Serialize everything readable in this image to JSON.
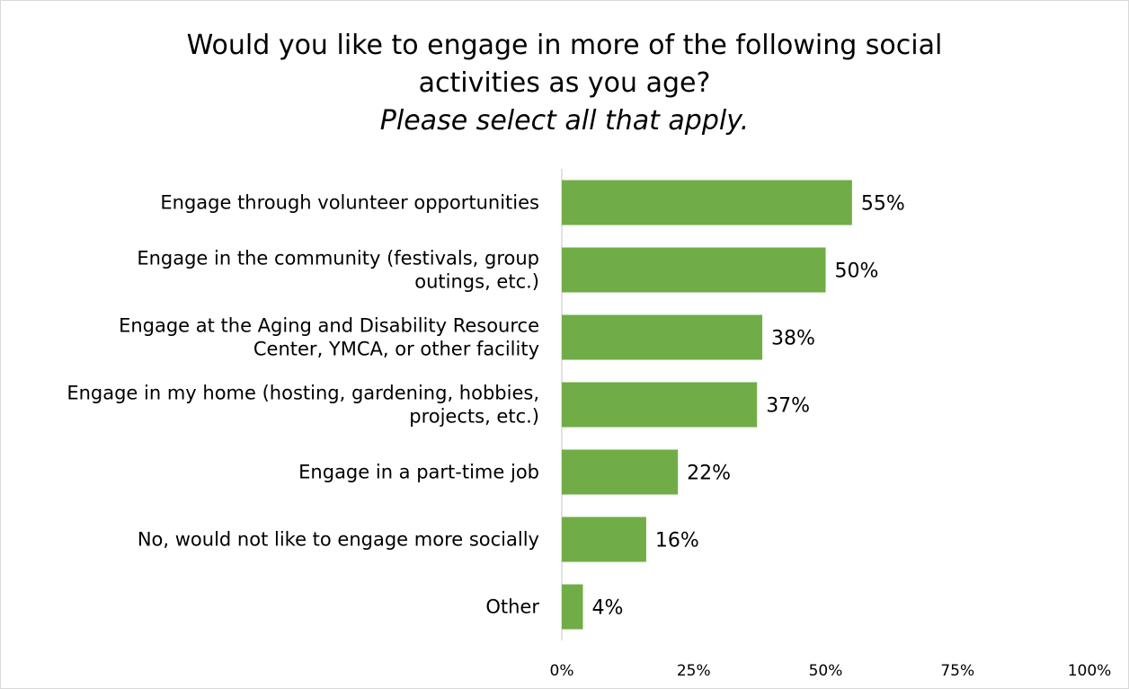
{
  "chart_data": {
    "type": "bar",
    "orientation": "horizontal",
    "title": "Would you like to engage in more of the following social activities as you age?",
    "subtitle": "Please select all that apply.",
    "categories": [
      [
        "Engage through volunteer opportunities"
      ],
      [
        "Engage in the community (festivals, group",
        "outings, etc.)"
      ],
      [
        "Engage at the Aging and Disability Resource",
        "Center, YMCA, or other facility"
      ],
      [
        "Engage in my home (hosting, gardening, hobbies,",
        "projects, etc.)"
      ],
      [
        "Engage in a part-time job"
      ],
      [
        "No, would not like to engage more socially"
      ],
      [
        "Other"
      ]
    ],
    "values": [
      55,
      50,
      38,
      37,
      22,
      16,
      4
    ],
    "value_labels": [
      "55%",
      "50%",
      "38%",
      "37%",
      "22%",
      "16%",
      "4%"
    ],
    "xlim": [
      0,
      100
    ],
    "xticks": [
      0,
      25,
      50,
      75,
      100
    ],
    "xtick_labels": [
      "0%",
      "25%",
      "50%",
      "75%",
      "100%"
    ],
    "bar_color": "#70ad47",
    "grid": false,
    "legend": "none"
  }
}
